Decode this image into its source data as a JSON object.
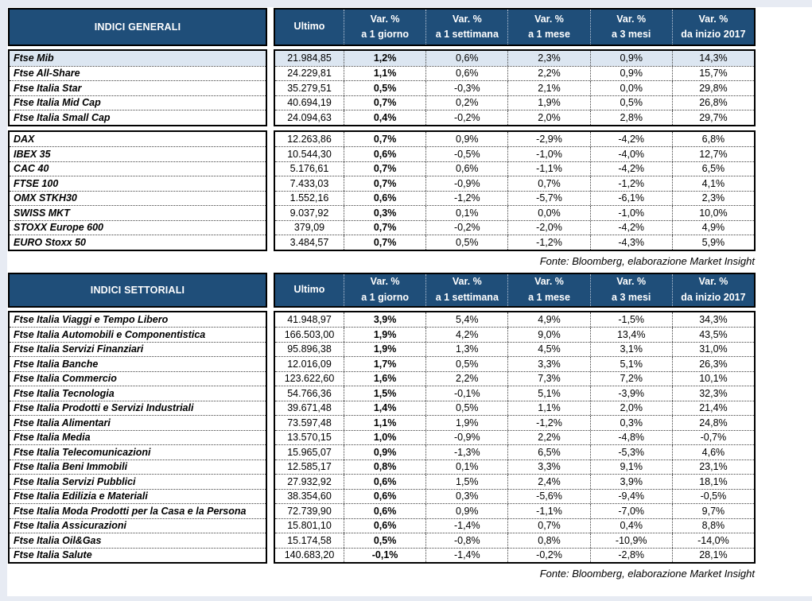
{
  "colors": {
    "header_bg": "#1f4e79",
    "header_text": "#ffffff",
    "highlight_row_bg": "#dce6f1",
    "border": "#000000",
    "page_margin": "#e7ebf3"
  },
  "columns": {
    "ultimo": "Ultimo",
    "var_label": "Var. %",
    "sub_labels": [
      "a 1 giorno",
      "a 1 settimana",
      "a 1 mese",
      "a 3 mesi",
      "da inizio 2017"
    ]
  },
  "source_note": "Fonte: Bloomberg, elaborazione Market Insight",
  "tables": [
    {
      "title": "INDICI GENERALI",
      "groups": [
        {
          "rows": [
            {
              "name": "Ftse Mib",
              "ultimo": "21.984,85",
              "values": [
                "1,2%",
                "0,6%",
                "2,3%",
                "0,9%",
                "14,3%"
              ],
              "highlight": true
            },
            {
              "name": "Ftse All-Share",
              "ultimo": "24.229,81",
              "values": [
                "1,1%",
                "0,6%",
                "2,2%",
                "0,9%",
                "15,7%"
              ]
            },
            {
              "name": "Ftse Italia Star",
              "ultimo": "35.279,51",
              "values": [
                "0,5%",
                "-0,3%",
                "2,1%",
                "0,0%",
                "29,8%"
              ]
            },
            {
              "name": "Ftse Italia Mid Cap",
              "ultimo": "40.694,19",
              "values": [
                "0,7%",
                "0,2%",
                "1,9%",
                "0,5%",
                "26,8%"
              ]
            },
            {
              "name": "Ftse Italia Small Cap",
              "ultimo": "24.094,63",
              "values": [
                "0,4%",
                "-0,2%",
                "2,0%",
                "2,8%",
                "29,7%"
              ]
            }
          ]
        },
        {
          "rows": [
            {
              "name": "DAX",
              "ultimo": "12.263,86",
              "values": [
                "0,7%",
                "0,9%",
                "-2,9%",
                "-4,2%",
                "6,8%"
              ]
            },
            {
              "name": "IBEX 35",
              "ultimo": "10.544,30",
              "values": [
                "0,6%",
                "-0,5%",
                "-1,0%",
                "-4,0%",
                "12,7%"
              ]
            },
            {
              "name": "CAC 40",
              "ultimo": "5.176,61",
              "values": [
                "0,7%",
                "0,6%",
                "-1,1%",
                "-4,2%",
                "6,5%"
              ]
            },
            {
              "name": "FTSE 100",
              "ultimo": "7.433,03",
              "values": [
                "0,7%",
                "-0,9%",
                "0,7%",
                "-1,2%",
                "4,1%"
              ]
            },
            {
              "name": "OMX STKH30",
              "ultimo": "1.552,16",
              "values": [
                "0,6%",
                "-1,2%",
                "-5,7%",
                "-6,1%",
                "2,3%"
              ]
            },
            {
              "name": "SWISS MKT",
              "ultimo": "9.037,92",
              "values": [
                "0,3%",
                "0,1%",
                "0,0%",
                "-1,0%",
                "10,0%"
              ]
            },
            {
              "name": "STOXX Europe 600",
              "ultimo": "379,09",
              "values": [
                "0,7%",
                "-0,2%",
                "-2,0%",
                "-4,2%",
                "4,9%"
              ]
            },
            {
              "name": "EURO Stoxx 50",
              "ultimo": "3.484,57",
              "values": [
                "0,7%",
                "0,5%",
                "-1,2%",
                "-4,3%",
                "5,9%"
              ]
            }
          ]
        }
      ]
    },
    {
      "title": "INDICI SETTORIALI",
      "groups": [
        {
          "rows": [
            {
              "name": "Ftse Italia Viaggi e Tempo Libero",
              "ultimo": "41.948,97",
              "values": [
                "3,9%",
                "5,4%",
                "4,9%",
                "-1,5%",
                "34,3%"
              ]
            },
            {
              "name": "Ftse Italia Automobili e Componentistica",
              "ultimo": "166.503,00",
              "values": [
                "1,9%",
                "4,2%",
                "9,0%",
                "13,4%",
                "43,5%"
              ]
            },
            {
              "name": "Ftse Italia Servizi Finanziari",
              "ultimo": "95.896,38",
              "values": [
                "1,9%",
                "1,3%",
                "4,5%",
                "3,1%",
                "31,0%"
              ]
            },
            {
              "name": "Ftse Italia Banche",
              "ultimo": "12.016,09",
              "values": [
                "1,7%",
                "0,5%",
                "3,3%",
                "5,1%",
                "26,3%"
              ]
            },
            {
              "name": "Ftse Italia Commercio",
              "ultimo": "123.622,60",
              "values": [
                "1,6%",
                "2,2%",
                "7,3%",
                "7,2%",
                "10,1%"
              ]
            },
            {
              "name": "Ftse Italia Tecnologia",
              "ultimo": "54.766,36",
              "values": [
                "1,5%",
                "-0,1%",
                "5,1%",
                "-3,9%",
                "32,3%"
              ]
            },
            {
              "name": "Ftse Italia Prodotti e Servizi Industriali",
              "ultimo": "39.671,48",
              "values": [
                "1,4%",
                "0,5%",
                "1,1%",
                "2,0%",
                "21,4%"
              ]
            },
            {
              "name": "Ftse Italia Alimentari",
              "ultimo": "73.597,48",
              "values": [
                "1,1%",
                "1,9%",
                "-1,2%",
                "0,3%",
                "24,8%"
              ]
            },
            {
              "name": "Ftse Italia Media",
              "ultimo": "13.570,15",
              "values": [
                "1,0%",
                "-0,9%",
                "2,2%",
                "-4,8%",
                "-0,7%"
              ]
            },
            {
              "name": "Ftse Italia Telecomunicazioni",
              "ultimo": "15.965,07",
              "values": [
                "0,9%",
                "-1,3%",
                "6,5%",
                "-5,3%",
                "4,6%"
              ]
            },
            {
              "name": "Ftse Italia Beni Immobili",
              "ultimo": "12.585,17",
              "values": [
                "0,8%",
                "0,1%",
                "3,3%",
                "9,1%",
                "23,1%"
              ]
            },
            {
              "name": "Ftse Italia Servizi Pubblici",
              "ultimo": "27.932,92",
              "values": [
                "0,6%",
                "1,5%",
                "2,4%",
                "3,9%",
                "18,1%"
              ]
            },
            {
              "name": "Ftse Italia Edilizia e Materiali",
              "ultimo": "38.354,60",
              "values": [
                "0,6%",
                "0,3%",
                "-5,6%",
                "-9,4%",
                "-0,5%"
              ]
            },
            {
              "name": "Ftse Italia Moda Prodotti per la Casa e la Persona",
              "ultimo": "72.739,90",
              "values": [
                "0,6%",
                "0,9%",
                "-1,1%",
                "-7,0%",
                "9,7%"
              ]
            },
            {
              "name": "Ftse Italia Assicurazioni",
              "ultimo": "15.801,10",
              "values": [
                "0,6%",
                "-1,4%",
                "0,7%",
                "0,4%",
                "8,8%"
              ]
            },
            {
              "name": "Ftse Italia Oil&Gas",
              "ultimo": "15.174,58",
              "values": [
                "0,5%",
                "-0,8%",
                "0,8%",
                "-10,9%",
                "-14,0%"
              ]
            },
            {
              "name": "Ftse Italia Salute",
              "ultimo": "140.683,20",
              "values": [
                "-0,1%",
                "-1,4%",
                "-0,2%",
                "-2,8%",
                "28,1%"
              ]
            }
          ]
        }
      ]
    }
  ]
}
